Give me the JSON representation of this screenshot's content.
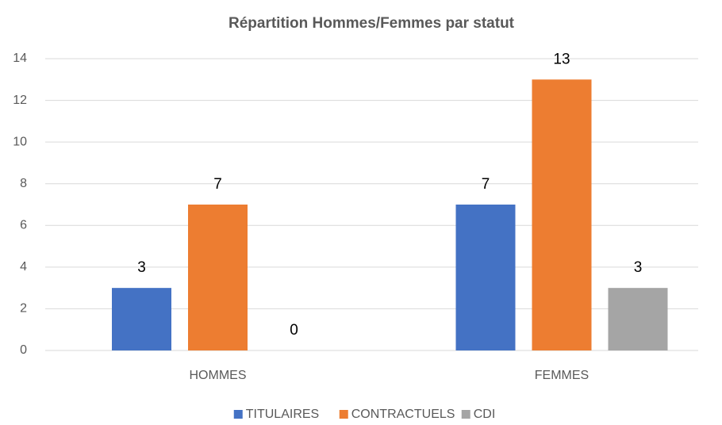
{
  "chart_data": {
    "type": "bar",
    "title": "Répartition Hommes/Femmes par statut",
    "categories": [
      "HOMMES",
      "FEMMES"
    ],
    "series": [
      {
        "name": "TITULAIRES",
        "color": "#4472c4",
        "values": [
          3,
          7
        ]
      },
      {
        "name": "CONTRACTUELS",
        "color": "#ed7d31",
        "values": [
          7,
          13
        ]
      },
      {
        "name": "CDI",
        "color": "#a5a5a5",
        "values": [
          0,
          3
        ]
      }
    ],
    "ylim": [
      0,
      14
    ],
    "yticks": [
      0,
      2,
      4,
      6,
      8,
      10,
      12,
      14
    ],
    "grid": true,
    "legend": "bottom"
  }
}
